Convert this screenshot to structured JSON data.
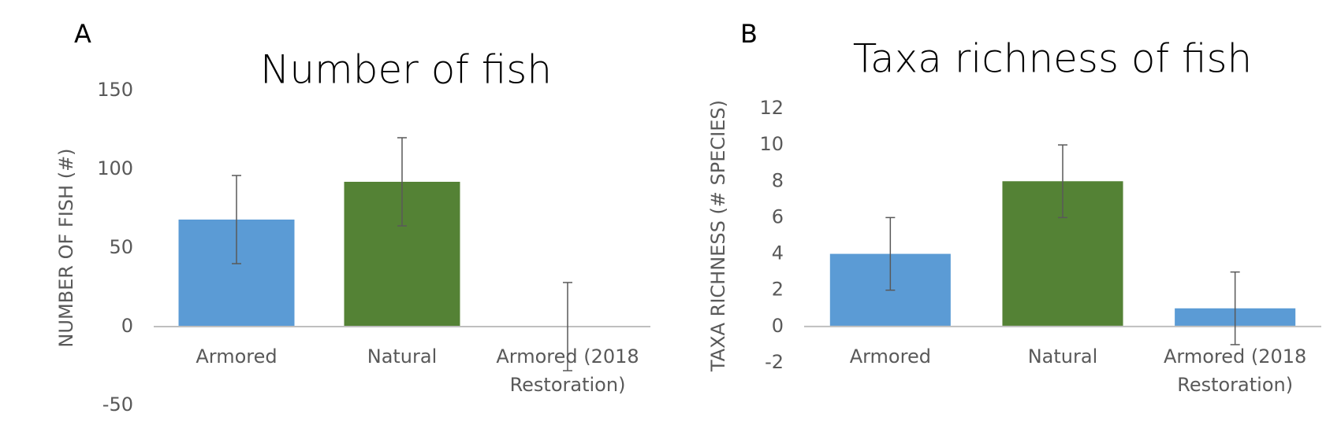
{
  "chart_data": [
    {
      "type": "bar",
      "panel_label": "A",
      "title": "Number of fish",
      "y_label": "NUMBER OF FISH (#)",
      "categories": [
        "Armored",
        "Natural",
        "Armored (2018 Restoration)"
      ],
      "values": [
        68,
        92,
        0
      ],
      "errors": [
        28,
        28,
        28
      ],
      "colors": [
        "#5b9bd5",
        "#548235",
        "#5b9bd5"
      ],
      "ylim": [
        -50,
        150
      ],
      "yticks": [
        -50,
        0,
        50,
        100,
        150
      ],
      "grid": false
    },
    {
      "type": "bar",
      "panel_label": "B",
      "title": "Taxa richness of fish",
      "y_label": "TAXA RICHNESS (# SPECIES)",
      "categories": [
        "Armored",
        "Natural",
        "Armored (2018 Restoration)"
      ],
      "values": [
        4,
        8,
        1
      ],
      "errors": [
        2,
        2,
        2
      ],
      "colors": [
        "#5b9bd5",
        "#548235",
        "#5b9bd5"
      ],
      "ylim": [
        -2,
        12
      ],
      "yticks": [
        -2,
        0,
        2,
        4,
        6,
        8,
        10,
        12
      ],
      "grid": false
    }
  ]
}
